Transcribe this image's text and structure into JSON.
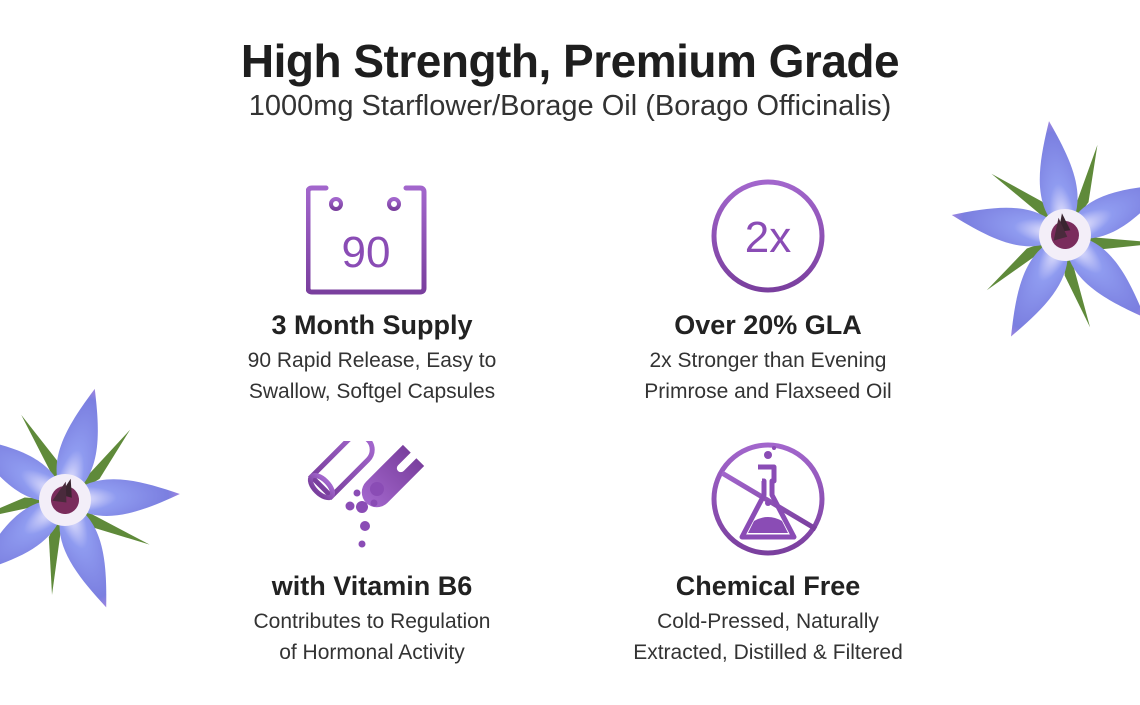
{
  "header": {
    "title": "High Strength, Premium Grade",
    "subtitle": "1000mg Starflower/Borage Oil (Borago Officinalis)"
  },
  "colors": {
    "accent": "#9b5cc4",
    "accent_dark": "#7a3f9e",
    "text": "#222222",
    "petal": "#7f8ae8"
  },
  "features": [
    {
      "icon": "calendar-icon",
      "icon_text": "90",
      "heading": "3 Month Supply",
      "line1": "90 Rapid Release, Easy to",
      "line2": "Swallow, Softgel Capsules"
    },
    {
      "icon": "2x-circle-icon",
      "icon_text": "2x",
      "heading": "Over 20% GLA",
      "line1": "2x Stronger than Evening",
      "line2": "Primrose and Flaxseed Oil"
    },
    {
      "icon": "open-capsule-icon",
      "heading": "with Vitamin B6",
      "line1": "Contributes to Regulation",
      "line2": "of Hormonal Activity"
    },
    {
      "icon": "no-chemicals-flask-icon",
      "heading": "Chemical Free",
      "line1": "Cold-Pressed, Naturally",
      "line2": "Extracted, Distilled & Filtered"
    }
  ]
}
